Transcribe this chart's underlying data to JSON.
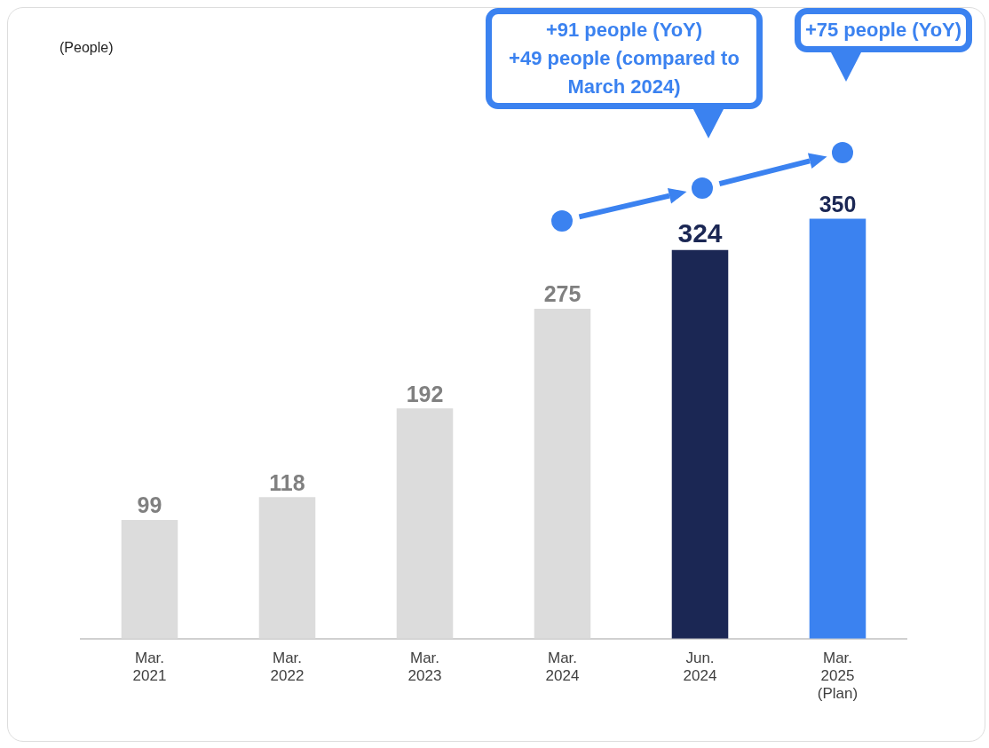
{
  "chart_data": {
    "type": "bar",
    "categories": [
      "Mar. 2021",
      "Mar. 2022",
      "Mar. 2023",
      "Mar. 2024",
      "Jun. 2024",
      "Mar. 2025 (Plan)"
    ],
    "values": [
      99,
      118,
      192,
      275,
      324,
      350
    ],
    "colors": [
      "#dcdcdc",
      "#dcdcdc",
      "#dcdcdc",
      "#dcdcdc",
      "#1b2754",
      "#3b82f0"
    ],
    "data_labels": true,
    "grid": false,
    "legend": false,
    "annotations": [
      "(People)",
      "+91 people (YoY)\n+49 people (compared to March 2024)",
      "+75 people (YoY)"
    ]
  }
}
